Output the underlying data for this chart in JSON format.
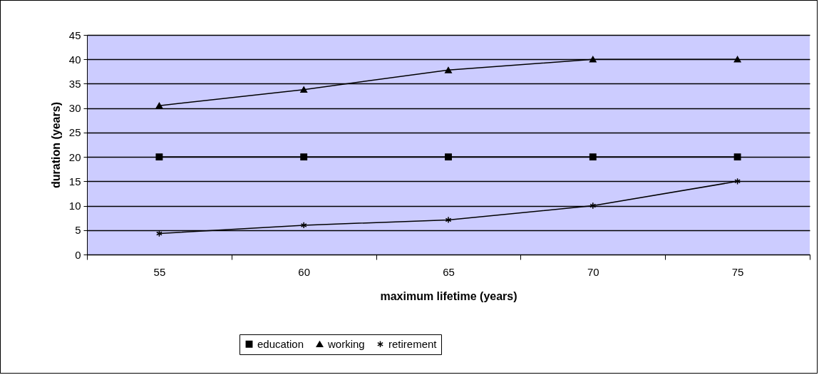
{
  "chart_data": {
    "type": "line",
    "xlabel": "maximum lifetime (years)",
    "ylabel": "duration (years)",
    "categories": [
      "55",
      "60",
      "65",
      "70",
      "75"
    ],
    "series": [
      {
        "name": "education",
        "color": "#000000",
        "marker": "square",
        "values": [
          20,
          20,
          20,
          20,
          20
        ]
      },
      {
        "name": "working",
        "color": "#000000",
        "marker": "triangle",
        "values": [
          30.5,
          33.8,
          37.8,
          40,
          40
        ]
      },
      {
        "name": "retirement",
        "color": "#000000",
        "marker": "cross",
        "values": [
          4.3,
          6,
          7.1,
          10,
          15
        ]
      }
    ],
    "ylim": [
      0,
      45
    ],
    "yticks": [
      0,
      5,
      10,
      15,
      20,
      25,
      30,
      35,
      40,
      45
    ],
    "grid": "y",
    "legend": "bottom",
    "line_style": "solid"
  }
}
